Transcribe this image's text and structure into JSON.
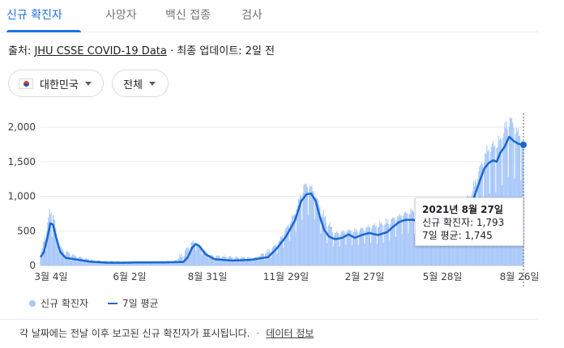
{
  "tabs": [
    {
      "label": "신규 확진자",
      "active": true
    },
    {
      "label": "사망자",
      "active": false
    },
    {
      "label": "백신 접종",
      "active": false
    },
    {
      "label": "검사",
      "active": false
    }
  ],
  "source": {
    "prefix": "출처: ",
    "link": "JHU CSSE COVID-19 Data",
    "suffix": " · 최종 업데이트: 2일 전"
  },
  "filters": {
    "country": "대한민국",
    "region": "전체"
  },
  "chart_data": {
    "type": "bar",
    "y_ticks": [
      0,
      500,
      1000,
      1500,
      2000
    ],
    "ylim": [
      0,
      2200
    ],
    "x_tick_labels": [
      "3월 4일",
      "6월 2일",
      "8월 31일",
      "11월 29일",
      "2월 27일",
      "5월 28일",
      "8월 26일"
    ],
    "grid": true,
    "legend_position": "bottom-left",
    "series": [
      {
        "name": "신규 확진자",
        "color": "#a8c7fa",
        "kind": "bar"
      },
      {
        "name": "7일 평균",
        "color": "#1967d2",
        "kind": "line"
      }
    ],
    "seven_day_average": [
      [
        0,
        120
      ],
      [
        4,
        200
      ],
      [
        8,
        420
      ],
      [
        11,
        610
      ],
      [
        14,
        590
      ],
      [
        17,
        430
      ],
      [
        22,
        200
      ],
      [
        28,
        110
      ],
      [
        38,
        90
      ],
      [
        55,
        55
      ],
      [
        75,
        40
      ],
      [
        95,
        40
      ],
      [
        115,
        45
      ],
      [
        140,
        45
      ],
      [
        160,
        50
      ],
      [
        165,
        120
      ],
      [
        170,
        260
      ],
      [
        174,
        310
      ],
      [
        178,
        280
      ],
      [
        185,
        160
      ],
      [
        195,
        90
      ],
      [
        215,
        70
      ],
      [
        235,
        80
      ],
      [
        255,
        120
      ],
      [
        265,
        250
      ],
      [
        275,
        420
      ],
      [
        285,
        650
      ],
      [
        292,
        930
      ],
      [
        298,
        1030
      ],
      [
        303,
        1040
      ],
      [
        308,
        940
      ],
      [
        313,
        700
      ],
      [
        318,
        510
      ],
      [
        323,
        420
      ],
      [
        330,
        380
      ],
      [
        338,
        400
      ],
      [
        345,
        450
      ],
      [
        352,
        400
      ],
      [
        360,
        440
      ],
      [
        368,
        470
      ],
      [
        378,
        440
      ],
      [
        388,
        480
      ],
      [
        395,
        560
      ],
      [
        402,
        630
      ],
      [
        409,
        660
      ],
      [
        418,
        660
      ],
      [
        430,
        580
      ],
      [
        440,
        560
      ],
      [
        450,
        640
      ],
      [
        458,
        690
      ],
      [
        470,
        680
      ],
      [
        478,
        640
      ],
      [
        486,
        1000
      ],
      [
        492,
        1220
      ],
      [
        497,
        1400
      ],
      [
        502,
        1480
      ],
      [
        507,
        1520
      ],
      [
        511,
        1500
      ],
      [
        515,
        1630
      ],
      [
        520,
        1720
      ],
      [
        525,
        1860
      ],
      [
        530,
        1800
      ],
      [
        535,
        1760
      ],
      [
        541,
        1745
      ]
    ],
    "daily_new_cases_envelope": [
      [
        0,
        150
      ],
      [
        10,
        830
      ],
      [
        14,
        850
      ],
      [
        20,
        300
      ],
      [
        40,
        150
      ],
      [
        60,
        80
      ],
      [
        100,
        60
      ],
      [
        150,
        70
      ],
      [
        170,
        380
      ],
      [
        190,
        160
      ],
      [
        240,
        120
      ],
      [
        265,
        330
      ],
      [
        285,
        800
      ],
      [
        295,
        1220
      ],
      [
        303,
        1190
      ],
      [
        315,
        850
      ],
      [
        330,
        500
      ],
      [
        360,
        560
      ],
      [
        395,
        720
      ],
      [
        420,
        850
      ],
      [
        470,
        820
      ],
      [
        486,
        1250
      ],
      [
        500,
        1750
      ],
      [
        515,
        1900
      ],
      [
        525,
        2250
      ],
      [
        535,
        2000
      ],
      [
        541,
        1793
      ]
    ],
    "tooltip": {
      "date": "2021년 8월 27일",
      "new_cases_label": "신규 확진자: 1,793",
      "avg_label": "7일 평균: 1,745"
    }
  },
  "legend": {
    "new_cases": "신규 확진자",
    "avg": "7일 평균"
  },
  "footer": {
    "note": "각 날짜에는 전날 이후 보고된 신규 확진자가 표시됩니다.",
    "separator": "·",
    "link": "데이터 정보"
  }
}
